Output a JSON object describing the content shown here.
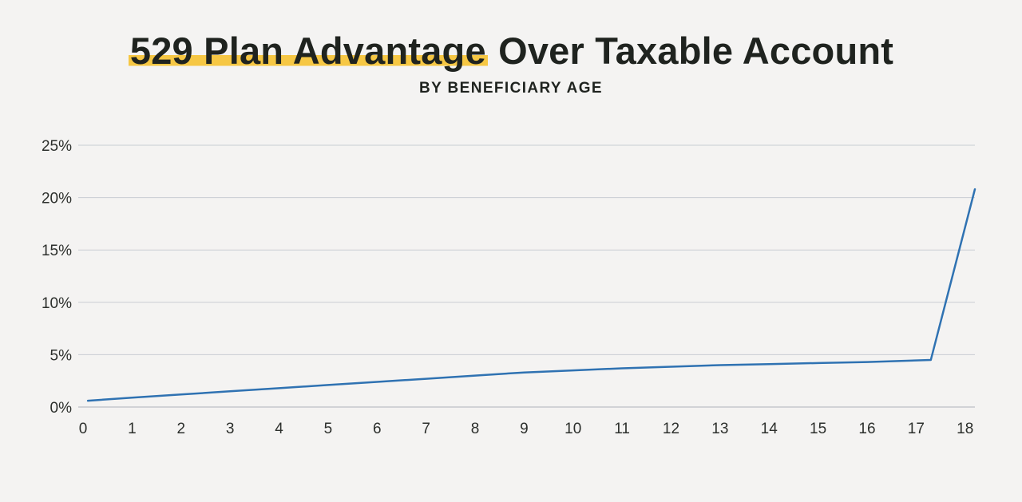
{
  "title": {
    "highlighted": "529 Plan Advantage",
    "rest": " Over Taxable Account"
  },
  "subtitle": "BY BENEFICIARY AGE",
  "colors": {
    "background": "#f4f3f2",
    "line": "#2f72b2",
    "grid": "#c9ccd3",
    "highlight": "#f6c744",
    "text": "#1f231f"
  },
  "chart_data": {
    "type": "line",
    "title": "529 Plan Advantage Over Taxable Account",
    "subtitle": "BY BENEFICIARY AGE",
    "xlabel": "",
    "ylabel": "",
    "xlim": [
      0,
      18.2
    ],
    "ylim": [
      0,
      25
    ],
    "grid": "horizontal",
    "x_ticks": [
      0,
      1,
      2,
      3,
      4,
      5,
      6,
      7,
      8,
      9,
      10,
      11,
      12,
      13,
      14,
      15,
      16,
      17,
      18
    ],
    "x_tick_labels": [
      "0",
      "1",
      "2",
      "3",
      "4",
      "5",
      "6",
      "7",
      "8",
      "9",
      "10",
      "11",
      "12",
      "13",
      "14",
      "15",
      "16",
      "17",
      "18"
    ],
    "y_ticks": [
      0,
      5,
      10,
      15,
      20,
      25
    ],
    "y_tick_labels": [
      "0%",
      "5%",
      "10%",
      "15%",
      "20%",
      "25%"
    ],
    "series": [
      {
        "x": [
          0.1,
          1,
          2,
          3,
          4,
          5,
          6,
          7,
          8,
          9,
          10,
          11,
          12,
          13,
          14,
          15,
          16,
          17.3,
          18.2
        ],
        "y": [
          0.6,
          0.9,
          1.2,
          1.5,
          1.8,
          2.1,
          2.4,
          2.7,
          3.0,
          3.3,
          3.5,
          3.7,
          3.85,
          4.0,
          4.1,
          4.2,
          4.3,
          4.5,
          20.8
        ]
      }
    ]
  }
}
